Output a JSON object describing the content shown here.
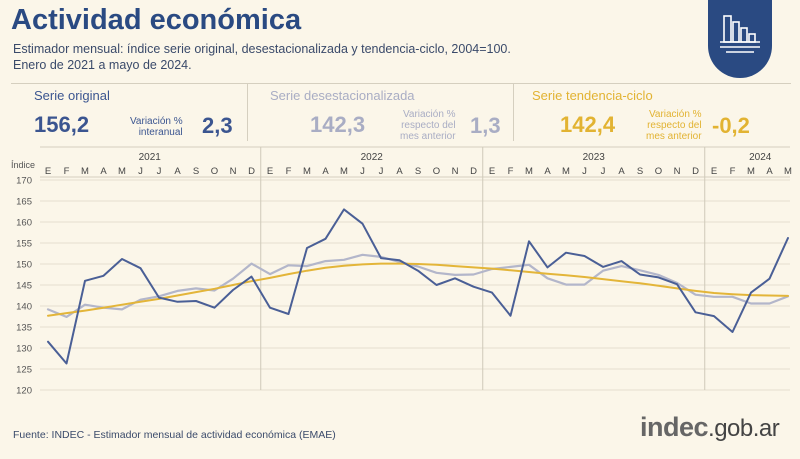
{
  "header": {
    "title": "Actividad económica",
    "subtitle_line1": "Estimador mensual: índice serie original, desestacionalizada y tendencia-ciclo, 2004=100.",
    "subtitle_line2": "Enero de 2021 a mayo de 2024."
  },
  "stats": {
    "original": {
      "label": "Serie original",
      "value": "156,2",
      "var_label_1": "Variación %",
      "var_label_2": "interanual",
      "var_value": "2,3"
    },
    "desest": {
      "label": "Serie desestacionalizada",
      "value": "142,3",
      "var_label_1": "Variación %",
      "var_label_2": "respecto del",
      "var_label_3": "mes anterior",
      "var_value": "1,3"
    },
    "tendencia": {
      "label": "Serie tendencia-ciclo",
      "value": "142,4",
      "var_label_1": "Variación %",
      "var_label_2": "respecto del",
      "var_label_3": "mes anterior",
      "var_value": "-0,2"
    }
  },
  "footer": {
    "source": "Fuente: INDEC - Estimador mensual de actividad económica (EMAE)",
    "logo_main": "indec",
    "logo_suffix": ".gob.ar"
  },
  "colors": {
    "original": "#4a5f96",
    "desest": "#b3b6ca",
    "tendencia": "#e3b539",
    "title": "#2a4a82"
  },
  "chart_data": {
    "type": "line",
    "ylabel": "Índice",
    "ylim": [
      120,
      170
    ],
    "yticks": [
      120,
      125,
      130,
      135,
      140,
      145,
      150,
      155,
      160,
      165,
      170
    ],
    "years": [
      "2021",
      "2022",
      "2023",
      "2024"
    ],
    "months": [
      "E",
      "F",
      "M",
      "A",
      "M",
      "J",
      "J",
      "A",
      "S",
      "O",
      "N",
      "D",
      "E",
      "F",
      "M",
      "A",
      "M",
      "J",
      "J",
      "A",
      "S",
      "O",
      "N",
      "D",
      "E",
      "F",
      "M",
      "A",
      "M",
      "J",
      "J",
      "A",
      "S",
      "O",
      "N",
      "D",
      "E",
      "F",
      "M",
      "A",
      "M"
    ],
    "series": [
      {
        "name": "Serie original",
        "values": [
          131.5,
          126.3,
          146,
          147.2,
          151.2,
          149,
          142,
          141,
          141.2,
          139.6,
          143.8,
          147,
          139.6,
          138.1,
          153.8,
          156,
          163,
          159.6,
          151.4,
          150.9,
          148.4,
          145,
          146.6,
          144.6,
          143.2,
          137.7,
          155.4,
          149.2,
          152.7,
          151.9,
          149.3,
          150.7,
          147.5,
          146.8,
          145.2,
          138.5,
          137.6,
          133.8,
          143.2,
          146.5,
          156.2
        ]
      },
      {
        "name": "Serie desestacionalizada",
        "values": [
          139.2,
          137.4,
          140.3,
          139.6,
          139.2,
          141.5,
          142.3,
          143.6,
          144.2,
          143.7,
          146.5,
          150.1,
          147.6,
          149.7,
          149.5,
          150.7,
          151,
          152.2,
          151.7,
          150.5,
          149.4,
          147.9,
          147.4,
          147.5,
          148.8,
          149.3,
          149.8,
          146.6,
          145.1,
          145.1,
          148.4,
          149.5,
          148.5,
          147.4,
          145.5,
          142.7,
          142.2,
          142.2,
          140.6,
          140.6,
          142.3
        ]
      },
      {
        "name": "Serie tendencia-ciclo",
        "values": [
          137.7,
          138.3,
          138.9,
          139.6,
          140.3,
          141,
          141.7,
          142.5,
          143.3,
          144.1,
          145,
          145.9,
          146.7,
          147.6,
          148.4,
          149.1,
          149.6,
          149.9,
          150.1,
          150.1,
          150,
          149.8,
          149.5,
          149.2,
          148.9,
          148.5,
          148.1,
          147.7,
          147.3,
          146.9,
          146.4,
          145.9,
          145.4,
          144.8,
          144.2,
          143.6,
          143.1,
          142.8,
          142.6,
          142.5,
          142.4
        ]
      }
    ]
  }
}
